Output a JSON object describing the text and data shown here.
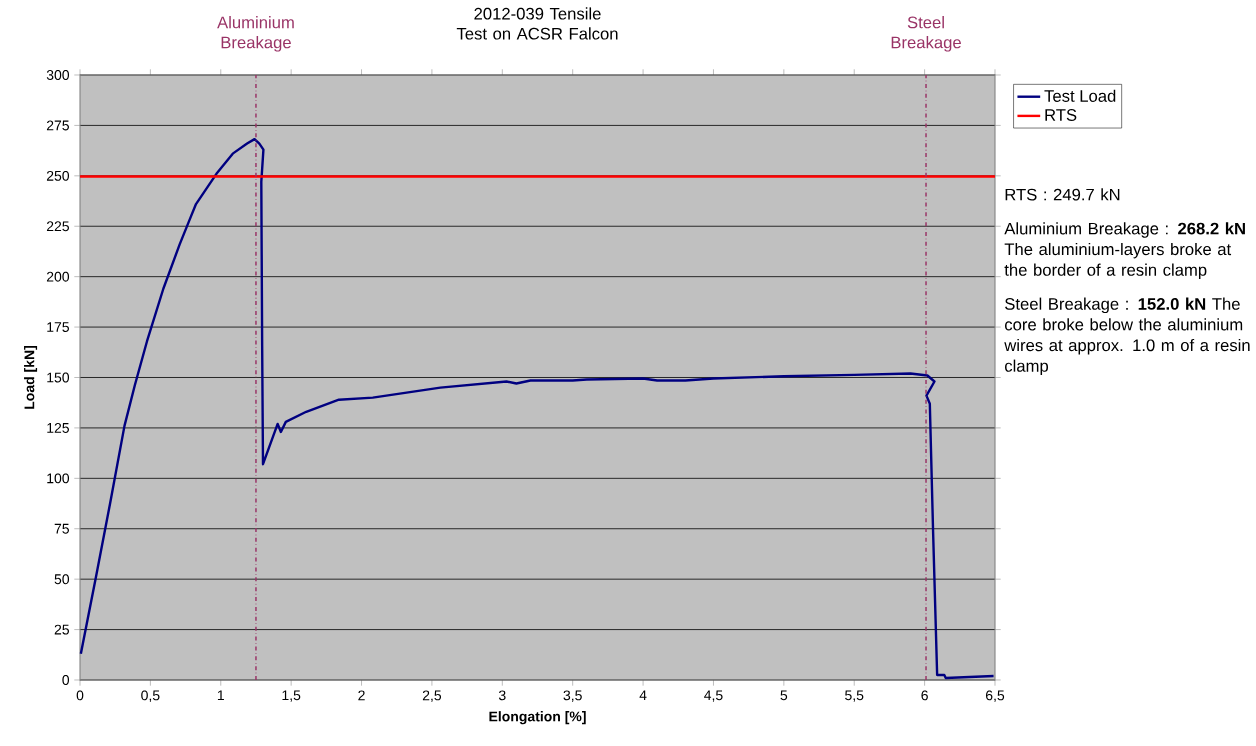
{
  "chart_data": {
    "type": "line",
    "title": "2012-039 Tensile Test on ACSR Falcon",
    "xlabel": "Elongation [%]",
    "ylabel": "Load [kN]",
    "xlim": [
      0,
      6.5
    ],
    "ylim": [
      0,
      300
    ],
    "xticks": [
      0,
      {
        "value": 0.5,
        "label": "0,5"
      },
      1,
      {
        "value": 1.5,
        "label": "1,5"
      },
      2,
      {
        "value": 2.5,
        "label": "2,5"
      },
      3,
      {
        "value": 3.5,
        "label": "3,5"
      },
      4,
      {
        "value": 4.5,
        "label": "4,5"
      },
      5,
      {
        "value": 5.5,
        "label": "5,5"
      },
      6,
      {
        "value": 6.5,
        "label": "6,5"
      }
    ],
    "yticks": [
      0,
      25,
      50,
      75,
      100,
      125,
      150,
      175,
      200,
      225,
      250,
      275,
      300
    ],
    "grid": "y",
    "legend": "right",
    "series": [
      {
        "name": "Test Load",
        "color": "#000080",
        "x": [
          0.006,
          0.113,
          0.215,
          0.316,
          0.389,
          0.476,
          0.592,
          0.708,
          0.789,
          0.824,
          0.969,
          1.085,
          1.187,
          1.24,
          1.274,
          1.303,
          1.288,
          1.294,
          1.3,
          1.404,
          1.427,
          1.462,
          1.607,
          1.839,
          2.08,
          2.56,
          3.03,
          3.1,
          3.2,
          3.5,
          3.6,
          4.0,
          4.1,
          4.3,
          4.5,
          5.0,
          5.5,
          5.9,
          6.02,
          6.07,
          6.013,
          6.037,
          6.06,
          6.089,
          6.14,
          6.15,
          6.49
        ],
        "values": [
          13,
          51,
          88,
          126,
          146,
          168,
          194,
          216,
          230,
          236,
          251,
          261,
          266,
          268.2,
          266,
          263,
          247,
          166,
          107,
          127,
          123,
          128,
          133,
          139,
          140,
          145,
          148,
          147,
          148.5,
          148.5,
          149,
          149.5,
          148.5,
          148.5,
          149.5,
          150.6,
          151.3,
          152.0,
          151,
          148,
          141,
          137,
          74,
          2.5,
          2.5,
          1,
          2
        ]
      },
      {
        "name": "RTS",
        "color": "#ff0000",
        "x": [
          0,
          6.5
        ],
        "values": [
          249.7,
          249.7
        ]
      }
    ],
    "ref_lines": [
      {
        "axis": "x",
        "value": 1.25,
        "label": "Aluminium Breakage",
        "color": "#993366",
        "line_style": "dashdot"
      },
      {
        "axis": "x",
        "value": 6.01,
        "label": "Steel Breakage",
        "color": "#993366",
        "line_style": "dashdot"
      }
    ],
    "annotations": [
      "RTS : 249.7 kN",
      "Aluminium Breakage : **268.2 kN** The aluminium-layers broke at the border of a resin clamp",
      "Steel Breakage : **152.0 kN** The core broke below the aluminium wires at approx. 1.0 m of a resin clamp"
    ]
  }
}
